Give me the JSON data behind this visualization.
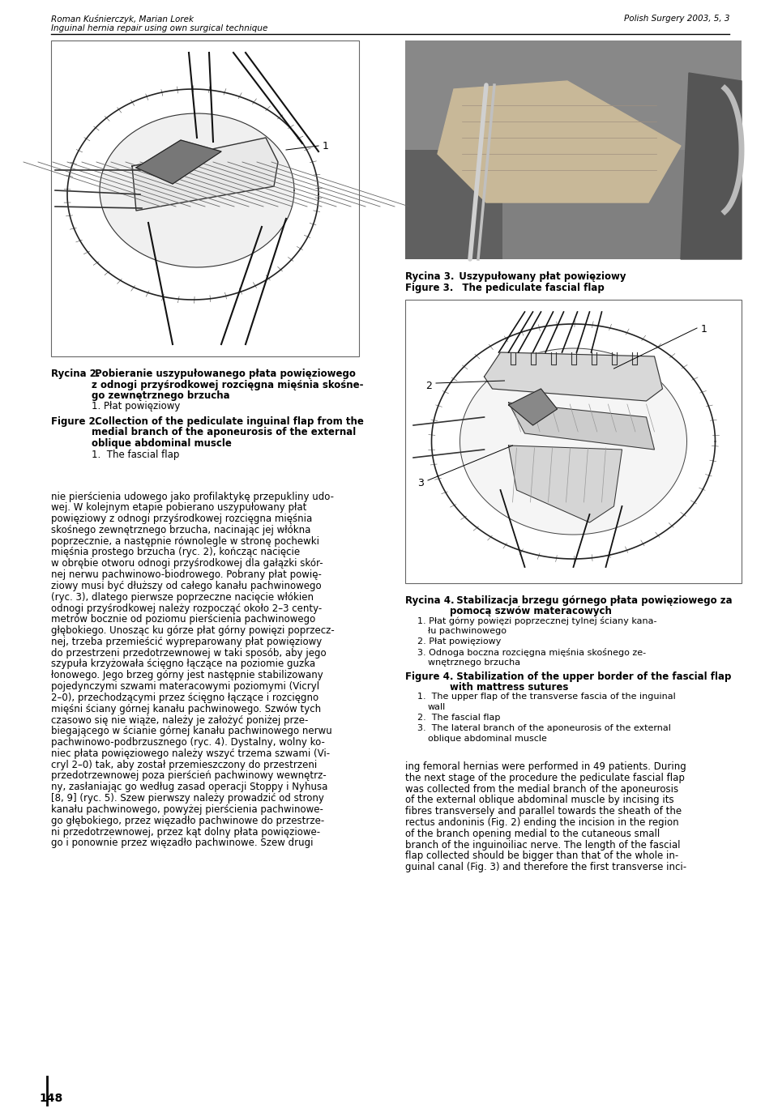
{
  "header_author": "Roman Kuśnierczyk, Marian Lorek",
  "header_title": "Inguinal hernia repair using own surgical technique",
  "header_journal": "Polish Surgery 2003, 5, 3",
  "fig2_caption_line1_pl": "Rycina 2.",
  "fig2_caption_line1_pl_rest": " Pobieranie uszypułowanego płata powięziowego",
  "fig2_caption_line2_pl": "z odnogi przyśrodkowej rozcięgna mięśnia skośne-",
  "fig2_caption_line3_pl": "go zewnętrznego brzucha",
  "fig2_caption_note": "1. Płat powięziowy",
  "fig2_caption_line1_en": "Figure 2.",
  "fig2_caption_line1_en_rest": " Collection of the pediculate inguinal flap from the",
  "fig2_caption_line2_en": "medial branch of the aponeurosis of the external",
  "fig2_caption_line3_en": "oblique abdominal muscle",
  "fig2_caption_note_en": "1.  The fascial flap",
  "fig3_caption_pl": "Rycina 3.",
  "fig3_caption_pl_rest": "  Uszypułowany płat powięziowy",
  "fig3_caption_en": "Figure 3.",
  "fig3_caption_en_rest": "   The pediculate fascial flap",
  "fig4_caption_line1_pl": "Rycina 4.",
  "fig4_caption_line1_pl_rest": "  Stabilizacja brzegu górnego płata powięziowego za",
  "fig4_caption_line2_pl": "pomocą szwów materacowych",
  "fig4_notes_pl": [
    "1. Płat górny powięzi poprzecznej tylnej ściany kana-",
    "łu pachwinowego",
    "2. Płat powięziowy",
    "3. Odnoga boczna rozcięgna mięśnia skośnego ze-",
    "wnętrznego brzucha"
  ],
  "fig4_caption_line1_en": "Figure 4.",
  "fig4_caption_line1_en_rest": "  Stabilization of the upper border of the fascial flap",
  "fig4_caption_line2_en": "with mattress sutures",
  "fig4_notes_en": [
    "1.  The upper flap of the transverse fascia of the inguinal",
    "wall",
    "2.  The fascial flap",
    "3.  The lateral branch of the aponeurosis of the external",
    "oblique abdominal muscle"
  ],
  "body_text_col1": [
    "nie pierścienia udowego jako profilaktykę przepukliny udo-",
    "wej. W kolejnym etapie pobierano uszypułowany płat",
    "powięziowy z odnogi przyśrodkowej rozcięgna mięśnia",
    "skośnego zewnętrznego brzucha, nacinając jej włókna",
    "poprzecznie, a następnie równolegle w stronę pochewki",
    "mięśnia prostego brzucha (ryc. 2), kończąc nacięcie",
    "w obrębie otworu odnogi przyśrodkowej dla gałązki skór-",
    "nej nerwu pachwinowo-biodrowego. Pobrany płat powię-",
    "ziowy musi być dłuższy od całego kanału pachwinowego",
    "(ryc. 3), dlatego pierwsze poprzeczne nacięcie włókien",
    "odnogi przyśrodkowej należy rozpocząć około 2–3 centy-",
    "metrów bocznie od poziomu pierścienia pachwinowego",
    "głębokiego. Unosząc ku górze płat górny powięzi poprzecz-",
    "nej, trzeba przemieścić wypreparowany płat powięziowy",
    "do przestrzeni przedotrzewnowej w taki sposób, aby jego",
    "szypuła krzyżowała ścięgno łączące na poziomie guzka",
    "łonowego. Jego brzeg górny jest następnie stabilizowany",
    "pojedynczymi szwami materacowymi poziomymi (Vicryl",
    "2–0), przechodzącymi przez ścięgno łączące i rozcięgno",
    "mięśni ściany górnej kanału pachwinowego. Szwów tych",
    "czasowo się nie wiąże, należy je założyć poniżej prze-",
    "biegającego w ścianie górnej kanału pachwinowego nerwu",
    "pachwinowo-podbrzusznego (ryc. 4). Dystalny, wolny ko-",
    "niec płata powięziowego należy wszyć trzema szwami (Vi-",
    "cryl 2–0) tak, aby został przemieszczony do przestrzeni",
    "przedotrzewnowej poza pierścień pachwinowy wewnętrz-",
    "ny, zasłaniając go według zasad operacji Stoppy i Nyhusa",
    "[8, 9] (ryc. 5). Szew pierwszy należy prowadzić od strony",
    "kanału pachwinowego, powyżej pierścienia pachwinowe-",
    "go głębokiego, przez więzadło pachwinowe do przestrze-",
    "ni przedotrzewnowej, przez kąt dolny płata powięziowe-",
    "go i ponownie przez więzadło pachwinowe. Szew drugi"
  ],
  "body_text_col2": [
    "ing femoral hernias were performed in 49 patients. During",
    "the next stage of the procedure the pediculate fascial flap",
    "was collected from the medial branch of the aponeurosis",
    "of the external oblique abdominal muscle by incising its",
    "fibres transversely and parallel towards the sheath of the",
    "rectus andoninis (Fig. 2) ending the incision in the region",
    "of the branch opening medial to the cutaneous small",
    "branch of the inguinoiliac nerve. The length of the fascial",
    "flap collected should be bigger than that of the whole in-",
    "guinal canal (Fig. 3) and therefore the first transverse inci-"
  ],
  "page_number": "148",
  "bg_color": "#ffffff"
}
